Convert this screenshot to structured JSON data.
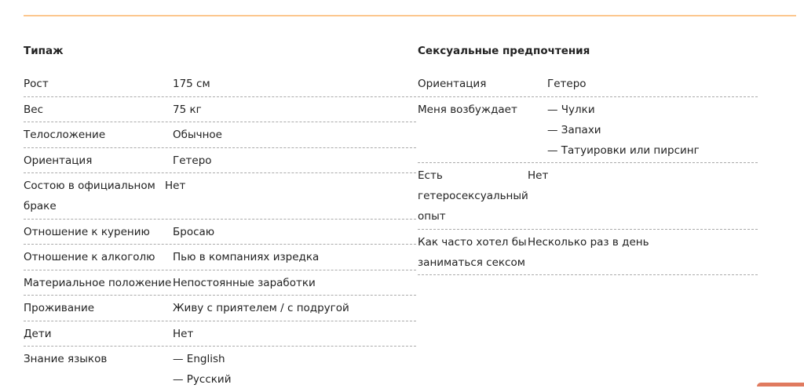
{
  "accent_color": "#fcc78f",
  "left": {
    "title": "Типаж",
    "rows": [
      {
        "label": "Рост",
        "values": [
          "175 см"
        ]
      },
      {
        "label": "Вес",
        "values": [
          "75 кг"
        ]
      },
      {
        "label": "Телосложение",
        "values": [
          "Обычное"
        ]
      },
      {
        "label": "Ориентация",
        "values": [
          "Гетеро"
        ]
      },
      {
        "label": "Состою в официальном браке",
        "values": [
          "Нет"
        ]
      },
      {
        "label": "Отношение к курению",
        "values": [
          "Бросаю"
        ]
      },
      {
        "label": "Отношение к алкоголю",
        "values": [
          "Пью в компаниях изредка"
        ]
      },
      {
        "label": "Материальное положение",
        "values": [
          "Непостоянные заработки"
        ]
      },
      {
        "label": "Проживание",
        "values": [
          "Живу с приятелем / с подругой"
        ]
      },
      {
        "label": "Дети",
        "values": [
          "Нет"
        ]
      },
      {
        "label": "Знание языков",
        "values": [
          "— English",
          "— Русский"
        ]
      }
    ]
  },
  "right": {
    "title": "Сексуальные предпочтения",
    "rows": [
      {
        "label": "Ориентация",
        "values": [
          "Гетеро"
        ]
      },
      {
        "label": "Меня возбуждает",
        "values": [
          "— Чулки",
          "— Запахи",
          "— Татуировки или пирсинг"
        ]
      },
      {
        "label": "Есть гетеросексуальный опыт",
        "values": [
          "Нет"
        ]
      },
      {
        "label": "Как часто хотел бы заниматься сексом",
        "values": [
          "Несколько раз в день"
        ]
      }
    ]
  }
}
